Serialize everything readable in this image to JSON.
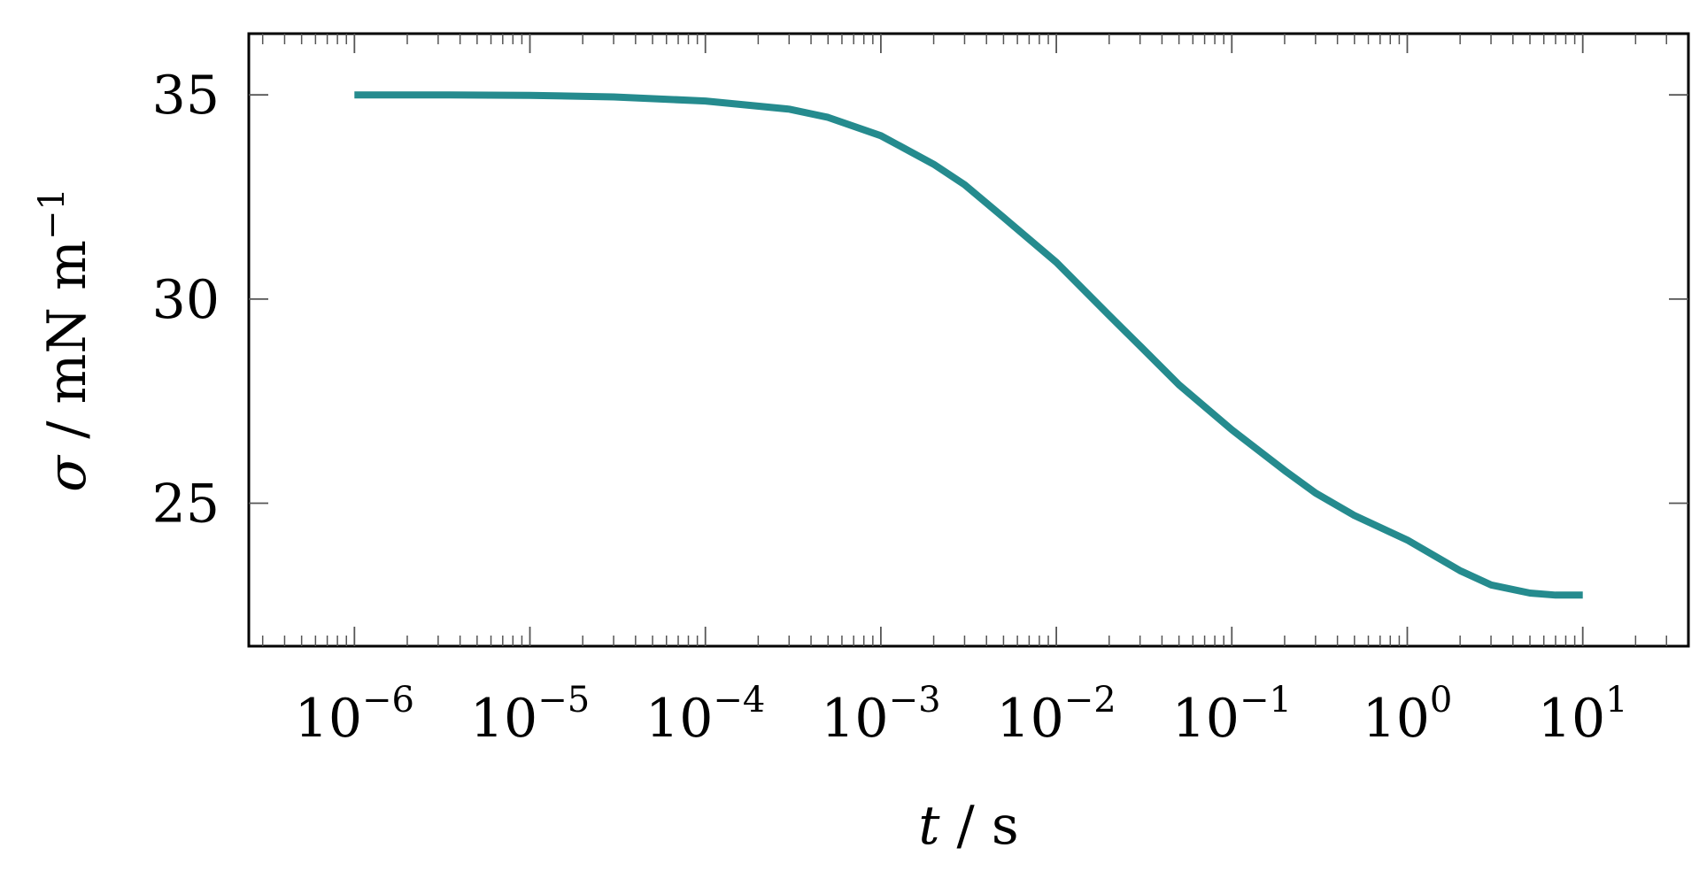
{
  "chart_data": {
    "type": "line",
    "x_scale": "log",
    "xlim": [
      2.5e-07,
      40
    ],
    "ylim": [
      21.5,
      36.5
    ],
    "grid": false,
    "xlabel": {
      "symbol": "t",
      "separator": " / ",
      "unit": "s"
    },
    "ylabel": {
      "symbol": "σ",
      "separator": " / ",
      "unit": "mN m",
      "unit_exponent": "−1"
    },
    "x_ticks": [
      {
        "value": 1e-06,
        "base": "10",
        "exponent": "−6"
      },
      {
        "value": 1e-05,
        "base": "10",
        "exponent": "−5"
      },
      {
        "value": 0.0001,
        "base": "10",
        "exponent": "−4"
      },
      {
        "value": 0.001,
        "base": "10",
        "exponent": "−3"
      },
      {
        "value": 0.01,
        "base": "10",
        "exponent": "−2"
      },
      {
        "value": 0.1,
        "base": "10",
        "exponent": "−1"
      },
      {
        "value": 1,
        "base": "10",
        "exponent": "0"
      },
      {
        "value": 10,
        "base": "10",
        "exponent": "1"
      }
    ],
    "y_ticks": [
      {
        "value": 25,
        "label": "25"
      },
      {
        "value": 30,
        "label": "30"
      },
      {
        "value": 35,
        "label": "35"
      }
    ],
    "series": [
      {
        "color": "#258B8E",
        "x": [
          1e-06,
          3e-06,
          1e-05,
          3e-05,
          0.0001,
          0.0003,
          0.0005,
          0.001,
          0.002,
          0.003,
          0.005,
          0.01,
          0.02,
          0.03,
          0.05,
          0.1,
          0.2,
          0.3,
          0.5,
          1,
          2,
          3,
          5,
          7,
          10
        ],
        "y": [
          35.0,
          35.0,
          34.99,
          34.95,
          34.85,
          34.65,
          34.45,
          34.0,
          33.3,
          32.8,
          32.0,
          30.9,
          29.6,
          28.85,
          27.9,
          26.8,
          25.8,
          25.25,
          24.7,
          24.1,
          23.35,
          23.0,
          22.8,
          22.75,
          22.75
        ]
      }
    ]
  }
}
